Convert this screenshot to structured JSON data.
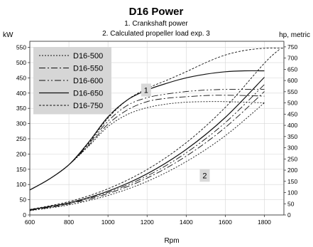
{
  "chart_data": {
    "type": "line",
    "title": "D16 Power",
    "subtitles": [
      "1. Crankshaft power",
      "2. Calculated propeller load exp. 3"
    ],
    "xlabel": "Rpm",
    "ylabel_left": "kW",
    "ylabel_right": "hp, metric",
    "xlim": [
      600,
      1900
    ],
    "ylim": [
      0,
      570
    ],
    "ylim_right": [
      0,
      775
    ],
    "x_ticks": [
      600,
      800,
      1000,
      1200,
      1400,
      1600,
      1800
    ],
    "y_ticks_left": [
      0,
      50,
      100,
      150,
      200,
      250,
      300,
      350,
      400,
      450,
      500,
      550
    ],
    "y_ticks_right": [
      0,
      50,
      100,
      150,
      200,
      250,
      300,
      350,
      400,
      450,
      500,
      550,
      600,
      650,
      700,
      750
    ],
    "grid": true,
    "legend_position": "top-left",
    "callouts": [
      {
        "label": "1",
        "x": 1195,
        "y": 410
      },
      {
        "label": "2",
        "x": 1495,
        "y": 130
      }
    ],
    "series": [
      {
        "name": "D16-500",
        "dash": "2,2",
        "width": 0.9,
        "crankshaft": [
          [
            600,
            82
          ],
          [
            700,
            118
          ],
          [
            800,
            165
          ],
          [
            900,
            225
          ],
          [
            1000,
            290
          ],
          [
            1100,
            330
          ],
          [
            1200,
            352
          ],
          [
            1300,
            364
          ],
          [
            1400,
            370
          ],
          [
            1500,
            372
          ],
          [
            1600,
            372
          ],
          [
            1700,
            370
          ],
          [
            1800,
            368
          ]
        ],
        "propeller": [
          [
            600,
            14
          ],
          [
            800,
            33
          ],
          [
            1000,
            64
          ],
          [
            1200,
            110
          ],
          [
            1400,
            175
          ],
          [
            1600,
            260
          ],
          [
            1800,
            368
          ]
        ]
      },
      {
        "name": "D16-550",
        "dash": "9,3,2,3",
        "width": 0.9,
        "crankshaft": [
          [
            600,
            82
          ],
          [
            700,
            118
          ],
          [
            800,
            165
          ],
          [
            900,
            228
          ],
          [
            1000,
            298
          ],
          [
            1100,
            345
          ],
          [
            1200,
            372
          ],
          [
            1300,
            383
          ],
          [
            1400,
            388
          ],
          [
            1500,
            392
          ],
          [
            1600,
            393
          ],
          [
            1700,
            392
          ],
          [
            1800,
            390
          ]
        ],
        "propeller": [
          [
            600,
            15
          ],
          [
            800,
            36
          ],
          [
            1000,
            70
          ],
          [
            1200,
            121
          ],
          [
            1400,
            193
          ],
          [
            1600,
            287
          ],
          [
            1800,
            405
          ]
        ]
      },
      {
        "name": "D16-600",
        "dash": "9,3,2,3,2,3",
        "width": 0.9,
        "crankshaft": [
          [
            600,
            82
          ],
          [
            700,
            118
          ],
          [
            800,
            165
          ],
          [
            900,
            232
          ],
          [
            1000,
            308
          ],
          [
            1100,
            360
          ],
          [
            1200,
            385
          ],
          [
            1300,
            397
          ],
          [
            1400,
            405
          ],
          [
            1500,
            410
          ],
          [
            1600,
            412
          ],
          [
            1700,
            412
          ],
          [
            1800,
            412
          ]
        ],
        "propeller": [
          [
            600,
            16
          ],
          [
            800,
            38
          ],
          [
            1000,
            74
          ],
          [
            1200,
            128
          ],
          [
            1400,
            204
          ],
          [
            1600,
            303
          ],
          [
            1800,
            428
          ]
        ]
      },
      {
        "name": "D16-650",
        "dash": "",
        "width": 1.2,
        "crankshaft": [
          [
            600,
            82
          ],
          [
            700,
            118
          ],
          [
            800,
            165
          ],
          [
            900,
            238
          ],
          [
            1000,
            322
          ],
          [
            1100,
            378
          ],
          [
            1200,
            410
          ],
          [
            1300,
            432
          ],
          [
            1400,
            450
          ],
          [
            1500,
            462
          ],
          [
            1600,
            470
          ],
          [
            1700,
            473
          ],
          [
            1800,
            473
          ]
        ],
        "propeller": [
          [
            600,
            17
          ],
          [
            800,
            40
          ],
          [
            1000,
            78
          ],
          [
            1200,
            135
          ],
          [
            1400,
            215
          ],
          [
            1600,
            320
          ],
          [
            1800,
            452
          ]
        ]
      },
      {
        "name": "D16-750",
        "dash": "3,2",
        "width": 0.9,
        "crankshaft": [
          [
            600,
            82
          ],
          [
            700,
            118
          ],
          [
            800,
            165
          ],
          [
            900,
            235
          ],
          [
            1000,
            318
          ],
          [
            1100,
            378
          ],
          [
            1200,
            415
          ],
          [
            1300,
            442
          ],
          [
            1400,
            470
          ],
          [
            1500,
            500
          ],
          [
            1600,
            525
          ],
          [
            1700,
            540
          ],
          [
            1800,
            547
          ],
          [
            1900,
            547
          ]
        ],
        "propeller": [
          [
            600,
            18
          ],
          [
            800,
            44
          ],
          [
            1000,
            86
          ],
          [
            1200,
            149
          ],
          [
            1400,
            237
          ],
          [
            1600,
            353
          ],
          [
            1800,
            498
          ],
          [
            1880,
            545
          ]
        ]
      }
    ]
  }
}
